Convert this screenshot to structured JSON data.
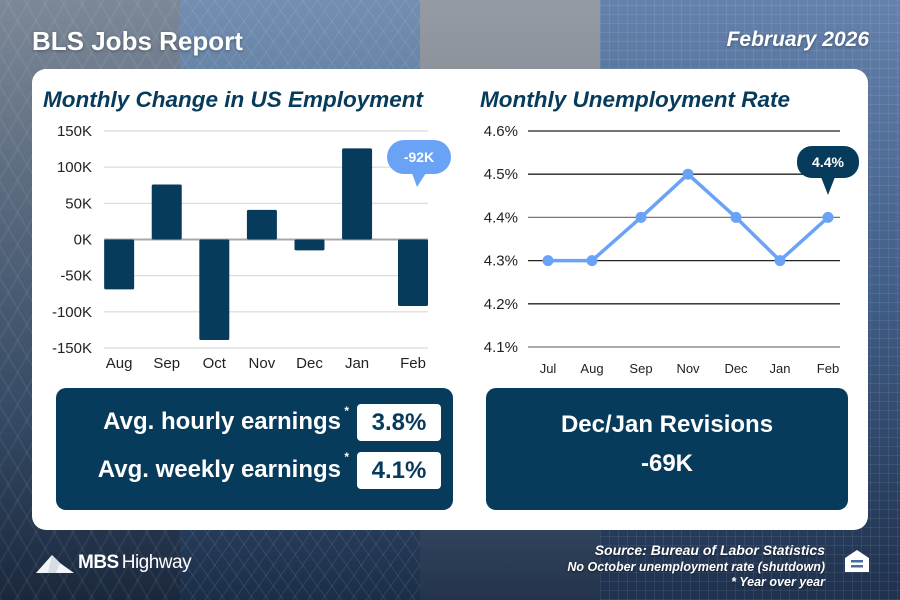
{
  "header": {
    "title": "BLS Jobs Report",
    "date": "February 2026"
  },
  "colors": {
    "navy": "#073b5c",
    "accent_blue": "#6aa3f5",
    "white": "#ffffff"
  },
  "chart_data": [
    {
      "type": "bar",
      "title": "Monthly Change in US Employment",
      "categories": [
        "Aug",
        "Sep",
        "Oct",
        "Nov",
        "Dec",
        "Jan",
        "Feb"
      ],
      "values": [
        -69,
        76,
        -139,
        41,
        -15,
        126,
        -92
      ],
      "units": "thousands",
      "ylim": [
        -150,
        150
      ],
      "yticks": [
        150,
        100,
        50,
        0,
        -50,
        -100,
        -150
      ],
      "ytick_labels": [
        "150K",
        "100K",
        "50K",
        "0K",
        "-50K",
        "-100K",
        "-150K"
      ],
      "grid": true,
      "callout": {
        "category": "Feb",
        "label": "-92K"
      },
      "bar_color": "#073b5c",
      "callout_color": "#6aa3f5"
    },
    {
      "type": "line",
      "title": "Monthly Unemployment Rate",
      "categories": [
        "Jul",
        "Aug",
        "Sep",
        "Nov",
        "Dec",
        "Jan",
        "Feb"
      ],
      "values": [
        4.3,
        4.3,
        4.4,
        4.5,
        4.4,
        4.3,
        4.4
      ],
      "units": "percent",
      "ylim": [
        4.1,
        4.6
      ],
      "yticks": [
        4.6,
        4.5,
        4.4,
        4.3,
        4.2,
        4.1
      ],
      "ytick_labels": [
        "4.6%",
        "4.5%",
        "4.4%",
        "4.3%",
        "4.2%",
        "4.1%"
      ],
      "grid": true,
      "callout": {
        "category": "Feb",
        "label": "4.4%"
      },
      "line_color": "#6aa3f5",
      "callout_color": "#073b5c"
    }
  ],
  "earnings": {
    "rows": [
      {
        "label": "Avg. hourly earnings",
        "marker": "*",
        "value": "3.8%"
      },
      {
        "label": "Avg. weekly earnings",
        "marker": "*",
        "value": "4.1%"
      }
    ]
  },
  "revisions": {
    "title": "Dec/Jan Revisions",
    "value": "-69K"
  },
  "footer": {
    "logo_bold": "MBS",
    "logo_light": "Highway",
    "source": "Source: Bureau of Labor Statistics",
    "note": "No October unemployment rate (shutdown)",
    "footnote": "* Year over year"
  }
}
